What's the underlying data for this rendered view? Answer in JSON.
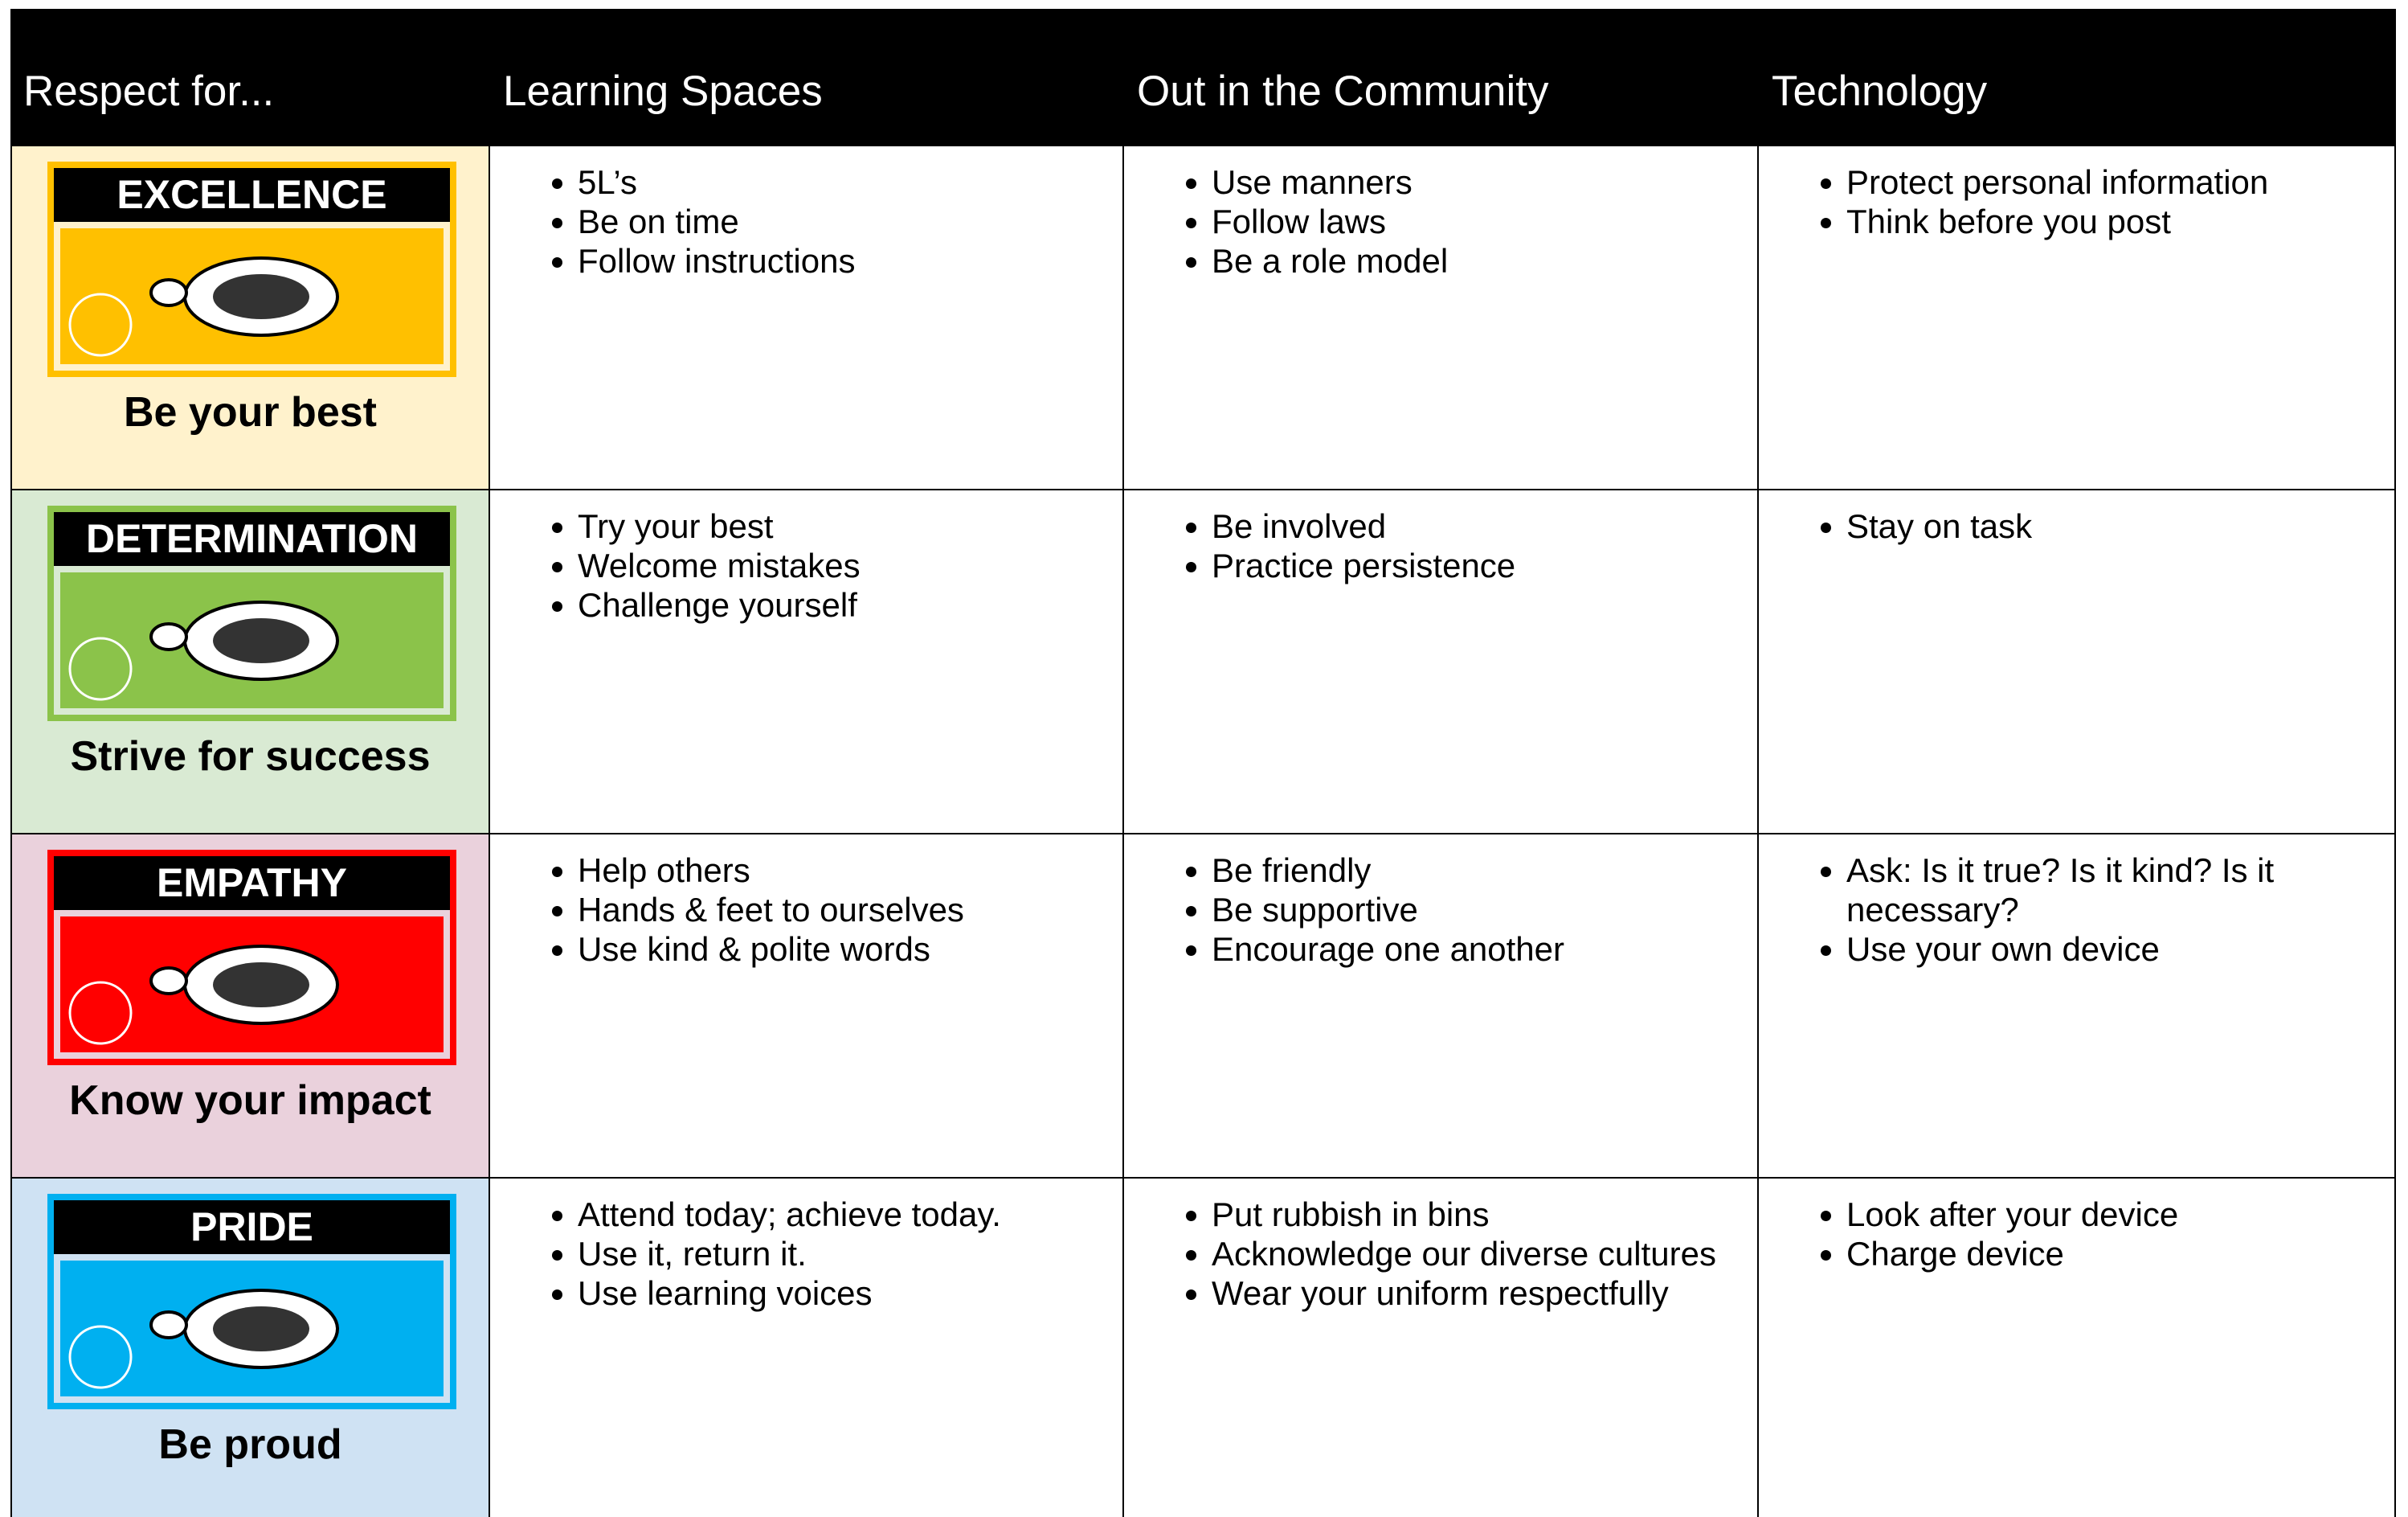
{
  "header": [
    "Respect for...",
    "Learning Spaces",
    "Out in the Community",
    "Technology"
  ],
  "rows": [
    {
      "value": "EXCELLENCE",
      "tagline": "Be your best",
      "cells": [
        [
          "5L’s",
          "Be on time",
          "Follow instructions"
        ],
        [
          "Use manners",
          "Follow laws",
          "Be a role model"
        ],
        [
          "Protect personal information",
          "Think before you post"
        ]
      ]
    },
    {
      "value": "DETERMINATION",
      "tagline": "Strive for success",
      "cells": [
        [
          "Try your best",
          "Welcome mistakes",
          "Challenge yourself"
        ],
        [
          "Be involved",
          "Practice persistence"
        ],
        [
          "Stay on task"
        ]
      ]
    },
    {
      "value": "EMPATHY",
      "tagline": "Know your impact",
      "cells": [
        [
          "Help others",
          "Hands & feet to ourselves",
          "Use kind & polite words"
        ],
        [
          "Be friendly",
          "Be supportive",
          "Encourage one another"
        ],
        [
          "Ask: Is it true? Is it kind? Is it necessary?",
          "Use your own device"
        ]
      ]
    },
    {
      "value": "PRIDE",
      "tagline": "Be proud",
      "cells": [
        [
          "Attend today; achieve today.",
          "Use it, return it.",
          "Use learning voices"
        ],
        [
          "Put rubbish in bins",
          "Acknowledge our diverse cultures",
          "Wear your uniform respectfully"
        ],
        [
          "Look after your device",
          "Charge device"
        ]
      ]
    }
  ]
}
